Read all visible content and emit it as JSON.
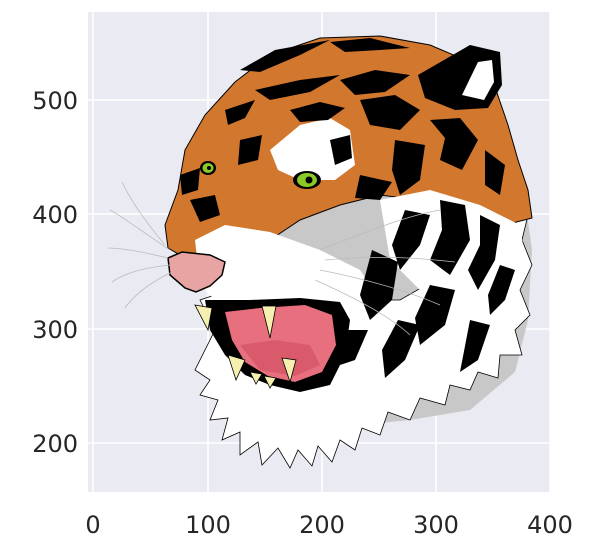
{
  "figure": {
    "x_ticks": [
      "0",
      "100",
      "200",
      "300",
      "400"
    ],
    "y_ticks": [
      "500",
      "400",
      "300",
      "200"
    ],
    "plot_background": "#eaeaf2",
    "grid_color": "#ffffff"
  },
  "image": {
    "subject": "tiger-head",
    "colors": {
      "fur_orange": "#d2772e",
      "stripe": "#000000",
      "white_fur": "#ffffff",
      "eye": "#8ac926",
      "mouth": "#e8707e",
      "nose": "#e8a3a3",
      "fang": "#f5f0b0"
    }
  },
  "chart_data": {
    "type": "image",
    "xlim": [
      -2,
      400
    ],
    "ylim": [
      155,
      575
    ],
    "x_ticks": [
      0,
      100,
      200,
      300,
      400
    ],
    "y_ticks": [
      200,
      300,
      400,
      500
    ],
    "grid": true
  }
}
